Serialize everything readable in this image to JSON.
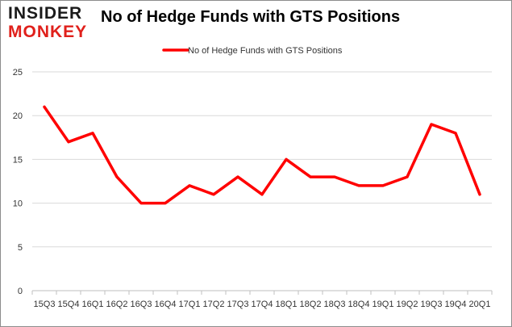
{
  "logo": {
    "top": "INSIDER",
    "bottom": "MONKEY"
  },
  "chart_data": {
    "type": "line",
    "title": "No of Hedge Funds with GTS Positions",
    "xlabel": "",
    "ylabel": "",
    "categories": [
      "15Q3",
      "15Q4",
      "16Q1",
      "16Q2",
      "16Q3",
      "16Q4",
      "17Q1",
      "17Q2",
      "17Q3",
      "17Q4",
      "18Q1",
      "18Q2",
      "18Q3",
      "18Q4",
      "19Q1",
      "19Q2",
      "19Q3",
      "19Q4",
      "20Q1"
    ],
    "series": [
      {
        "name": "No of Hedge Funds with GTS Positions",
        "color": "#ff0000",
        "values": [
          21,
          17,
          18,
          13,
          10,
          10,
          12,
          11,
          13,
          11,
          15,
          13,
          13,
          12,
          12,
          13,
          19,
          18,
          11
        ]
      }
    ],
    "ylim": [
      0,
      25
    ],
    "yticks": [
      0,
      5,
      10,
      15,
      20,
      25
    ],
    "grid": true,
    "legend": "top-center"
  }
}
